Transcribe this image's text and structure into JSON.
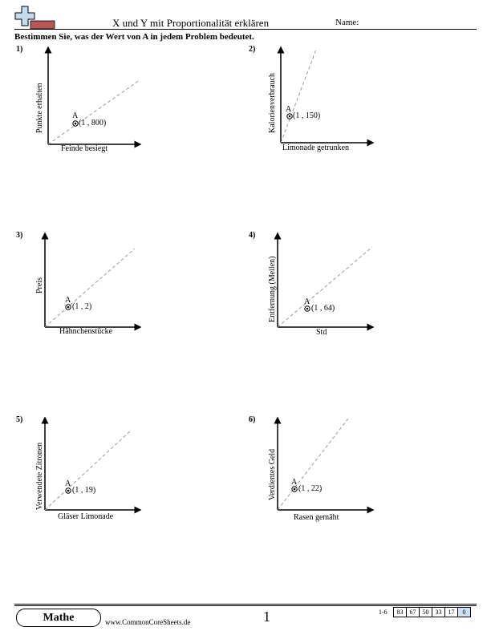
{
  "header": {
    "title": "X und Y mit Proportionalität erklären",
    "name_label": "Name:",
    "instructions": "Bestimmen Sie, was der Wert von A in jedem Problem bedeutet."
  },
  "problems": [
    {
      "number": "1)",
      "ylabel": "Punkte erhalten",
      "xlabel": "Feinde besiegt",
      "point_label": "A",
      "point_text": "(1 , 800)"
    },
    {
      "number": "2)",
      "ylabel": "Kalorienverbrauch",
      "xlabel": "Limonade getrunken",
      "point_label": "A",
      "point_text": "(1 , 150)"
    },
    {
      "number": "3)",
      "ylabel": "Preis",
      "xlabel": "Hähnchenstücke",
      "point_label": "A",
      "point_text": "(1 , 2)"
    },
    {
      "number": "4)",
      "ylabel": "Entfernung (Meilen)",
      "xlabel": "Std",
      "point_label": "A",
      "point_text": "(1 , 64)"
    },
    {
      "number": "5)",
      "ylabel": "Verwendete Zitronen",
      "xlabel": "Gläser Limonade",
      "point_label": "A",
      "point_text": "(1 , 19)"
    },
    {
      "number": "6)",
      "ylabel": "Verdientes Geld",
      "xlabel": "Rasen gemäht",
      "point_label": "A",
      "point_text": "(1 , 22)"
    }
  ],
  "footer": {
    "subject": "Mathe",
    "website": "www.CommonCoreSheets.de",
    "page_number": "1",
    "score_range": "1-6",
    "scores": [
      "83",
      "67",
      "50",
      "33",
      "17",
      "0"
    ]
  }
}
